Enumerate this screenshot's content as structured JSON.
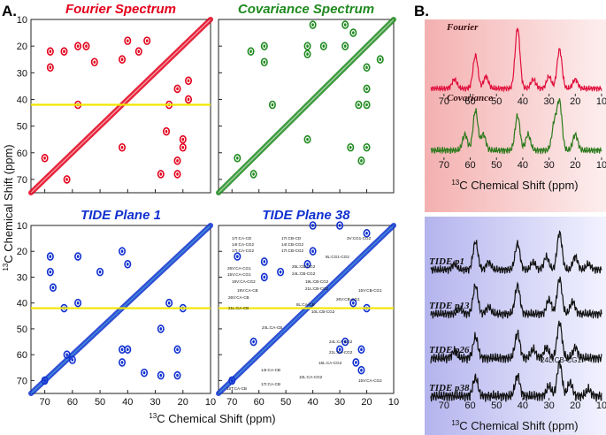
{
  "panel_a": {
    "label": "A.",
    "x_label": {
      "sup": "13",
      "text": "C Chemical Shift (ppm)"
    },
    "y_label": {
      "sup": "13",
      "text": "C Chemical Shift (ppm)"
    },
    "xlim": [
      75,
      10
    ],
    "ylim": [
      10,
      75
    ],
    "xticks": [
      70,
      60,
      50,
      40,
      30,
      20,
      10
    ],
    "yticks": [
      10,
      20,
      30,
      40,
      50,
      60,
      70
    ],
    "marker_line": 42,
    "spectra": [
      {
        "title": "Fourier Spectrum",
        "color": "#e3001b",
        "marker": true,
        "peaks": [
          [
            68,
            22
          ],
          [
            68,
            28
          ],
          [
            63,
            22
          ],
          [
            58,
            42
          ],
          [
            42,
            58
          ],
          [
            22,
            68
          ],
          [
            28,
            68
          ],
          [
            22,
            63
          ],
          [
            55,
            20
          ],
          [
            20,
            55
          ],
          [
            58,
            20
          ],
          [
            20,
            58
          ],
          [
            42,
            25
          ],
          [
            25,
            42
          ],
          [
            40,
            18
          ],
          [
            18,
            40
          ],
          [
            36,
            22
          ],
          [
            22,
            36
          ],
          [
            62,
            70
          ],
          [
            70,
            62
          ],
          [
            26,
            52
          ],
          [
            52,
            26
          ],
          [
            33,
            18
          ],
          [
            18,
            33
          ]
        ]
      },
      {
        "title": "Covariance Spectrum",
        "color": "#1f8a1f",
        "marker": false,
        "peaks": [
          [
            63,
            22
          ],
          [
            22,
            63
          ],
          [
            58,
            20
          ],
          [
            20,
            58
          ],
          [
            42,
            23
          ],
          [
            23,
            42
          ],
          [
            42,
            20
          ],
          [
            20,
            42
          ],
          [
            36,
            20
          ],
          [
            20,
            36
          ],
          [
            55,
            42
          ],
          [
            42,
            55
          ],
          [
            58,
            26
          ],
          [
            26,
            58
          ],
          [
            15,
            25
          ],
          [
            25,
            15
          ],
          [
            28,
            20
          ],
          [
            20,
            28
          ],
          [
            68,
            62
          ],
          [
            62,
            68
          ],
          [
            40,
            12
          ],
          [
            28,
            12
          ]
        ]
      },
      {
        "title": "TIDE Plane 1",
        "color": "#1030d0",
        "marker": true,
        "peaks": [
          [
            68,
            22
          ],
          [
            68,
            28
          ],
          [
            67,
            34
          ],
          [
            63,
            42
          ],
          [
            58,
            40
          ],
          [
            42,
            58
          ],
          [
            22,
            68
          ],
          [
            28,
            68
          ],
          [
            34,
            67
          ],
          [
            42,
            63
          ],
          [
            40,
            58
          ],
          [
            58,
            22
          ],
          [
            22,
            58
          ],
          [
            20,
            42
          ],
          [
            42,
            20
          ],
          [
            25,
            40
          ],
          [
            40,
            25
          ],
          [
            50,
            28
          ],
          [
            28,
            50
          ],
          [
            60,
            62
          ],
          [
            62,
            60
          ],
          [
            70,
            70
          ]
        ]
      },
      {
        "title": "TIDE Plane 38",
        "color": "#1030d0",
        "marker": true,
        "peaks": [
          [
            68,
            22
          ],
          [
            58,
            30
          ],
          [
            52,
            28
          ],
          [
            42,
            25
          ],
          [
            40,
            20
          ],
          [
            25,
            40
          ],
          [
            20,
            42
          ],
          [
            22,
            58
          ],
          [
            28,
            55
          ],
          [
            30,
            58
          ],
          [
            24,
            63
          ],
          [
            22,
            66
          ],
          [
            58,
            24
          ],
          [
            62,
            55
          ],
          [
            70,
            70
          ],
          [
            40,
            10
          ],
          [
            30,
            10
          ],
          [
            20,
            13
          ]
        ],
        "labels": [
          "17I:CA-CD",
          "14I:CA-CG2",
          "17I:CA-CG2",
          "17I:CB-CD",
          "14I:CB-CG2",
          "17I:CB-CG2",
          "3V:CG1-CG2",
          "8L:CG1-CG2",
          "26V:CA-CG1",
          "15V:CA-CG1",
          "19V:CA-CG2",
          "25L:CB-CG2",
          "24L:CB-CG2",
          "19L:CB-CG2",
          "21L:CB-CG2",
          "19V:CA-CB",
          "26V:CA-CB",
          "21L:CA-CB",
          "8L:CA-CB",
          "24L:CA-CB",
          "10L:CB-CG2",
          "15V:CB-CG1",
          "26V:CB-CG1",
          "24L:CA-CG2",
          "21L:CA-CG2",
          "16L:CA-CG2",
          "14I:CA-CB",
          "17I:CA-CB",
          "18T:CA-CB",
          "10L:CA-CG2",
          "15V:CA-CG2"
        ]
      }
    ]
  },
  "panel_b": {
    "label": "B.",
    "x_label": {
      "sup": "13",
      "text": "C Chemical Shift (ppm)"
    },
    "xlim": [
      75,
      10
    ],
    "xticks": [
      70,
      60,
      50,
      40,
      30,
      20,
      10
    ],
    "annotation": "24L:CB-CG1",
    "traces": [
      {
        "name": "Fourier",
        "color": "#e0103c",
        "peaks": [
          [
            66,
            0.15
          ],
          [
            58,
            0.55
          ],
          [
            54,
            0.2
          ],
          [
            42,
            1.0
          ],
          [
            36,
            0.15
          ],
          [
            30,
            0.2
          ],
          [
            26,
            0.65
          ],
          [
            20,
            0.15
          ]
        ]
      },
      {
        "name": "Covariance",
        "color": "#2a7a1a",
        "peaks": [
          [
            62,
            0.3
          ],
          [
            58,
            0.75
          ],
          [
            55,
            0.3
          ],
          [
            42,
            0.65
          ],
          [
            38,
            0.3
          ],
          [
            28,
            0.5
          ],
          [
            26,
            0.9
          ],
          [
            20,
            0.3
          ]
        ]
      },
      {
        "name": "TIDE p1",
        "color": "#111111",
        "peaks": [
          [
            66,
            0.15
          ],
          [
            58,
            0.75
          ],
          [
            53,
            0.2
          ],
          [
            42,
            0.7
          ],
          [
            36,
            0.2
          ],
          [
            31,
            0.35
          ],
          [
            26,
            1.0
          ],
          [
            20,
            0.35
          ],
          [
            15,
            0.15
          ]
        ]
      },
      {
        "name": "TIDE p13",
        "color": "#111111",
        "peaks": [
          [
            64,
            0.15
          ],
          [
            58,
            0.8
          ],
          [
            53,
            0.2
          ],
          [
            42,
            0.8
          ],
          [
            30,
            0.4
          ],
          [
            26,
            1.0
          ],
          [
            21,
            0.35
          ]
        ]
      },
      {
        "name": "TIDE p26",
        "color": "#111111",
        "peaks": [
          [
            66,
            0.2
          ],
          [
            58,
            0.6
          ],
          [
            42,
            0.7
          ],
          [
            36,
            0.25
          ],
          [
            31,
            0.3
          ],
          [
            26,
            1.0
          ],
          [
            20,
            0.3
          ]
        ]
      },
      {
        "name": "TIDE p38",
        "color": "#111111",
        "peaks": [
          [
            58,
            0.55
          ],
          [
            42,
            0.6
          ],
          [
            30,
            0.3
          ],
          [
            26,
            1.0
          ],
          [
            22,
            0.4
          ],
          [
            15,
            0.2
          ]
        ]
      }
    ]
  }
}
